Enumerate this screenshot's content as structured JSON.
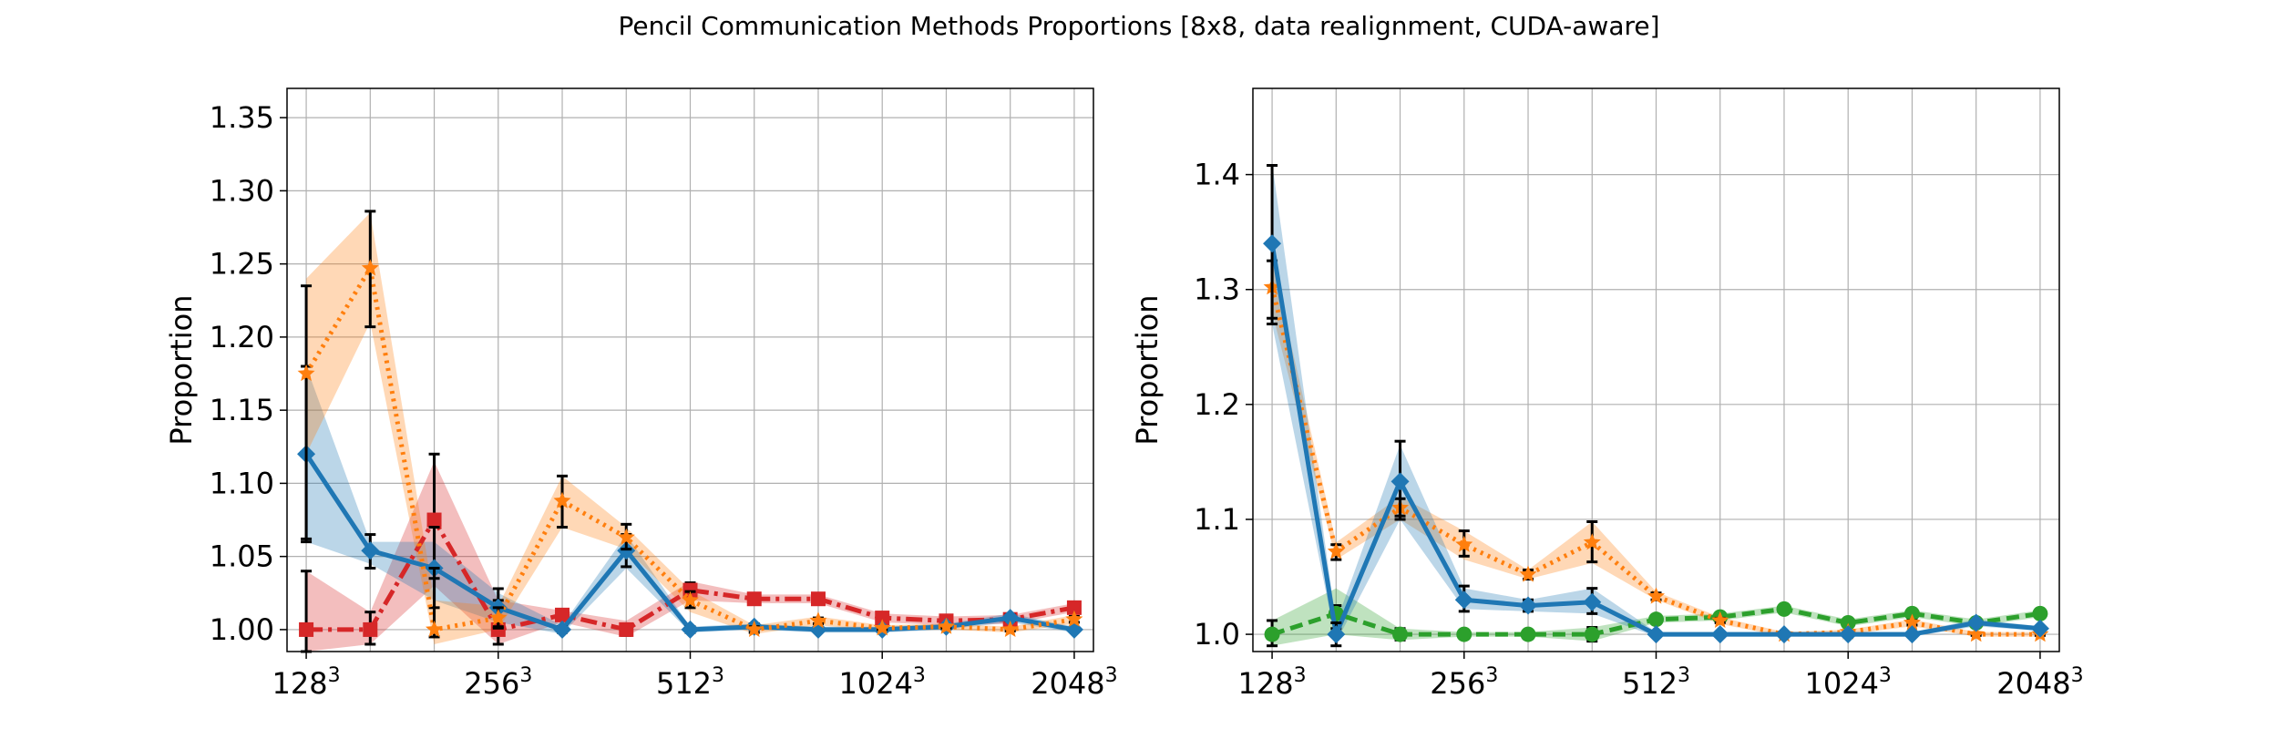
{
  "figure": {
    "title": "Pencil Communication Methods Proportions [8x8, data realignment, CUDA-aware]"
  },
  "colors": {
    "blue": "#1f77b4",
    "orange": "#ff7f0e",
    "green": "#2ca02c",
    "red": "#d62728",
    "grid": "#b0b0b0",
    "errorbar": "#000000"
  },
  "chart_data": [
    {
      "type": "line",
      "ylabel": "Proportion",
      "xlabel": "",
      "ylim": [
        0.985,
        1.37
      ],
      "yticks": [
        1.0,
        1.05,
        1.1,
        1.15,
        1.2,
        1.25,
        1.3,
        1.35
      ],
      "ytick_labels": [
        "1.00",
        "1.05",
        "1.10",
        "1.15",
        "1.20",
        "1.25",
        "1.30",
        "1.35"
      ],
      "x_positions": [
        0,
        1,
        2,
        3,
        4,
        5,
        6,
        7,
        8,
        9,
        10,
        11,
        12
      ],
      "xlim": [
        -0.3,
        12.3
      ],
      "xticks": [
        0,
        3,
        6,
        9,
        12
      ],
      "xtick_labels": [
        {
          "base": "128",
          "exp": "3"
        },
        {
          "base": "256",
          "exp": "3"
        },
        {
          "base": "512",
          "exp": "3"
        },
        {
          "base": "1024",
          "exp": "3"
        },
        {
          "base": "2048",
          "exp": "3"
        }
      ],
      "grid": true,
      "series": [
        {
          "color": "#d62728",
          "linestyle": "dashdot",
          "marker": "square",
          "values": [
            1.0,
            1.0,
            1.075,
            1.0,
            1.01,
            1.0,
            1.027,
            1.021,
            1.021,
            1.008,
            1.006,
            1.007,
            1.015
          ],
          "band_lo": [
            0.985,
            0.99,
            1.03,
            0.99,
            1.005,
            0.995,
            1.02,
            1.018,
            1.018,
            1.005,
            1.003,
            1.004,
            1.012
          ],
          "band_hi": [
            1.04,
            1.012,
            1.115,
            1.02,
            1.013,
            1.006,
            1.033,
            1.024,
            1.024,
            1.011,
            1.009,
            1.01,
            1.018
          ],
          "err_lo": [
            0.985,
            0.99,
            1.035,
            0.99,
            1.007,
            0.996,
            1.022,
            1.019,
            1.019,
            1.006,
            1.004,
            1.005,
            1.013
          ],
          "err_hi": [
            1.04,
            1.012,
            1.12,
            1.02,
            1.013,
            1.004,
            1.032,
            1.023,
            1.023,
            1.01,
            1.008,
            1.009,
            1.017
          ]
        },
        {
          "color": "#1f77b4",
          "linestyle": "solid",
          "marker": "diamond",
          "values": [
            1.12,
            1.054,
            1.042,
            1.015,
            1.0,
            1.054,
            1.0,
            1.002,
            1.0,
            1.0,
            1.002,
            1.008,
            1.0
          ],
          "band_lo": [
            1.06,
            1.045,
            1.02,
            1.005,
            0.997,
            1.042,
            0.998,
            1.0,
            0.998,
            0.998,
            1.0,
            1.005,
            0.998
          ],
          "band_hi": [
            1.18,
            1.06,
            1.06,
            1.025,
            1.003,
            1.065,
            1.002,
            1.004,
            1.002,
            1.002,
            1.004,
            1.011,
            1.002
          ],
          "err_lo": [
            1.06,
            1.042,
            1.015,
            1.002,
            0.998,
            1.043,
            0.998,
            1.0,
            0.999,
            0.999,
            1.001,
            1.006,
            0.999
          ],
          "err_hi": [
            1.18,
            1.065,
            1.07,
            1.028,
            1.002,
            1.065,
            1.002,
            1.004,
            1.001,
            1.001,
            1.003,
            1.01,
            1.001
          ]
        },
        {
          "color": "#ff7f0e",
          "linestyle": "dotted",
          "marker": "star",
          "values": [
            1.175,
            1.247,
            1.0,
            1.008,
            1.088,
            1.063,
            1.02,
            1.0,
            1.006,
            1.001,
            1.002,
            1.0,
            1.007
          ],
          "band_lo": [
            1.12,
            1.21,
            0.99,
            1.0,
            1.07,
            1.055,
            1.012,
            0.997,
            1.003,
            0.999,
            1.0,
            0.998,
            1.004
          ],
          "band_hi": [
            1.24,
            1.285,
            1.02,
            1.016,
            1.105,
            1.07,
            1.027,
            1.003,
            1.009,
            1.003,
            1.004,
            1.002,
            1.01
          ],
          "err_lo": [
            1.062,
            1.207,
            0.995,
            1.001,
            1.07,
            1.055,
            1.015,
            0.998,
            1.004,
            1.0,
            1.001,
            0.999,
            1.005
          ],
          "err_hi": [
            1.235,
            1.286,
            1.042,
            1.015,
            1.105,
            1.072,
            1.026,
            1.002,
            1.008,
            1.002,
            1.003,
            1.001,
            1.009
          ]
        }
      ]
    },
    {
      "type": "line",
      "ylabel": "Proportion",
      "xlabel": "",
      "ylim": [
        0.985,
        1.475
      ],
      "yticks": [
        1.0,
        1.1,
        1.2,
        1.3,
        1.4
      ],
      "ytick_labels": [
        "1.0",
        "1.1",
        "1.2",
        "1.3",
        "1.4"
      ],
      "x_positions": [
        0,
        1,
        2,
        3,
        4,
        5,
        6,
        7,
        8,
        9,
        10,
        11,
        12
      ],
      "xlim": [
        -0.3,
        12.3
      ],
      "xticks": [
        0,
        3,
        6,
        9,
        12
      ],
      "xtick_labels": [
        {
          "base": "128",
          "exp": "3"
        },
        {
          "base": "256",
          "exp": "3"
        },
        {
          "base": "512",
          "exp": "3"
        },
        {
          "base": "1024",
          "exp": "3"
        },
        {
          "base": "2048",
          "exp": "3"
        }
      ],
      "grid": true,
      "series": [
        {
          "color": "#2ca02c",
          "linestyle": "dashed",
          "marker": "circle",
          "values": [
            1.0,
            1.018,
            1.0,
            1.0,
            1.0,
            1.0,
            1.013,
            1.015,
            1.022,
            1.01,
            1.018,
            1.01,
            1.018
          ],
          "band_lo": [
            0.99,
            1.0,
            0.995,
            0.998,
            0.998,
            0.994,
            1.01,
            1.012,
            1.019,
            1.007,
            1.015,
            1.007,
            1.015
          ],
          "band_hi": [
            1.012,
            1.04,
            1.005,
            1.002,
            1.002,
            1.006,
            1.016,
            1.018,
            1.025,
            1.013,
            1.021,
            1.013,
            1.021
          ],
          "err_lo": [
            0.99,
            1.005,
            0.995,
            0.998,
            0.998,
            0.994,
            1.011,
            1.013,
            1.02,
            1.008,
            1.016,
            1.008,
            1.016
          ],
          "err_hi": [
            1.012,
            1.025,
            1.005,
            1.002,
            1.002,
            1.006,
            1.015,
            1.017,
            1.024,
            1.012,
            1.02,
            1.012,
            1.02
          ]
        },
        {
          "color": "#ff7f0e",
          "linestyle": "dotted",
          "marker": "star",
          "values": [
            1.302,
            1.072,
            1.11,
            1.078,
            1.052,
            1.08,
            1.033,
            1.012,
            1.0,
            1.002,
            1.01,
            1.0,
            1.0
          ],
          "band_lo": [
            1.28,
            1.065,
            1.1,
            1.065,
            1.048,
            1.062,
            1.03,
            1.009,
            0.998,
            1.0,
            1.007,
            0.998,
            0.998
          ],
          "band_hi": [
            1.325,
            1.08,
            1.12,
            1.09,
            1.056,
            1.098,
            1.037,
            1.015,
            1.002,
            1.004,
            1.013,
            1.002,
            1.002
          ],
          "err_lo": [
            1.275,
            1.065,
            1.103,
            1.068,
            1.048,
            1.063,
            1.03,
            1.01,
            0.999,
            1.001,
            1.008,
            0.999,
            0.999
          ],
          "err_hi": [
            1.325,
            1.078,
            1.118,
            1.09,
            1.056,
            1.098,
            1.036,
            1.014,
            1.001,
            1.003,
            1.012,
            1.001,
            1.001
          ]
        },
        {
          "color": "#1f77b4",
          "linestyle": "solid",
          "marker": "diamond",
          "values": [
            1.34,
            1.0,
            1.133,
            1.03,
            1.025,
            1.028,
            1.0,
            1.0,
            1.0,
            1.0,
            1.0,
            1.01,
            1.005
          ],
          "band_lo": [
            1.27,
            0.993,
            1.1,
            1.022,
            1.02,
            1.018,
            0.998,
            0.998,
            0.998,
            0.998,
            0.998,
            1.007,
            1.003
          ],
          "band_hi": [
            1.41,
            1.01,
            1.165,
            1.04,
            1.03,
            1.04,
            1.002,
            1.002,
            1.002,
            1.002,
            1.002,
            1.013,
            1.007
          ],
          "err_lo": [
            1.27,
            0.99,
            1.1,
            1.02,
            1.02,
            1.018,
            0.999,
            0.999,
            0.999,
            0.999,
            0.999,
            1.008,
            1.004
          ],
          "err_hi": [
            1.408,
            1.01,
            1.168,
            1.042,
            1.03,
            1.04,
            1.001,
            1.001,
            1.001,
            1.001,
            1.001,
            1.012,
            1.006
          ]
        }
      ]
    }
  ]
}
